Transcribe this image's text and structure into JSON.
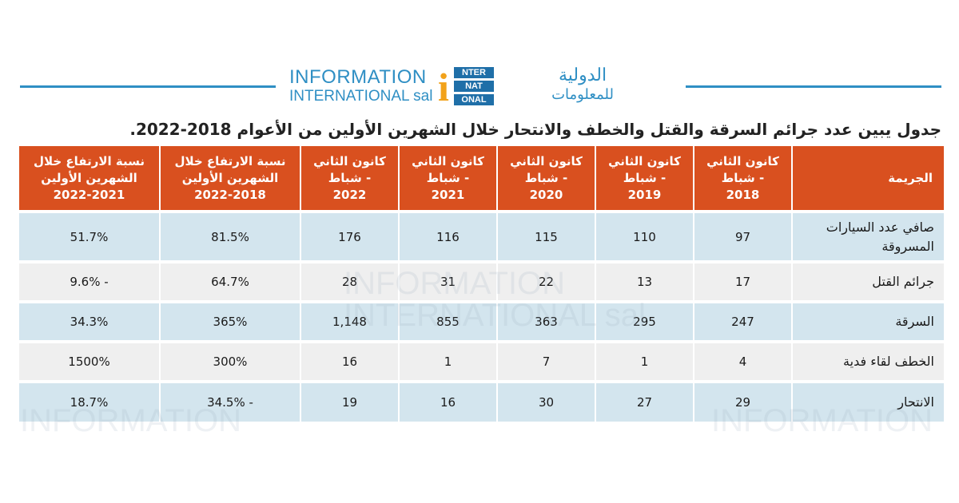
{
  "logo": {
    "en_line1": "INFORMATION",
    "en_line2": "INTERNATIONAL sal",
    "mark_i": "i",
    "mark_boxes": [
      "NTER",
      "NAT",
      "ONAL"
    ],
    "ar_line1": "الدولية",
    "ar_line2": "للمعلومات"
  },
  "caption": "جدول يبين عدد جرائم السرقة والقتل والخطف والانتحار خلال الشهرين الأولين من الأعوام 2018-2022.",
  "table": {
    "headers": [
      "الجريمة",
      "كانون الثاني\n- شباط\n2018",
      "كانون الثاني\n- شباط\n2019",
      "كانون الثاني\n- شباط\n2020",
      "كانون الثاني\n- شباط\n2021",
      "كانون الثاني\n- شباط\n2022",
      "نسبة الارتفاع خلال\nالشهرين الأولين\n2022-2018",
      "نسبة الارتفاع خلال\nالشهرين الأولين\n2022-2021"
    ],
    "rows": [
      [
        "صافي عدد السيارات المسروقة",
        "97",
        "110",
        "115",
        "116",
        "176",
        "81.5%",
        "51.7%"
      ],
      [
        "جرائم القتل",
        "17",
        "13",
        "22",
        "31",
        "28",
        "64.7%",
        "- 9.6%"
      ],
      [
        "السرقة",
        "247",
        "295",
        "363",
        "855",
        "1,148",
        "365%",
        "34.3%"
      ],
      [
        "الخطف لقاء فدية",
        "4",
        "1",
        "7",
        "1",
        "16",
        "300%",
        "1500%"
      ],
      [
        "الانتحار",
        "29",
        "27",
        "30",
        "16",
        "19",
        "- 34.5%",
        "18.7%"
      ]
    ]
  },
  "colors": {
    "header_bg": "#d9501f",
    "band_a": "#d3e5ee",
    "band_b": "#efefef",
    "brand_blue": "#2f8fc4",
    "brand_orange": "#f2a21a"
  }
}
